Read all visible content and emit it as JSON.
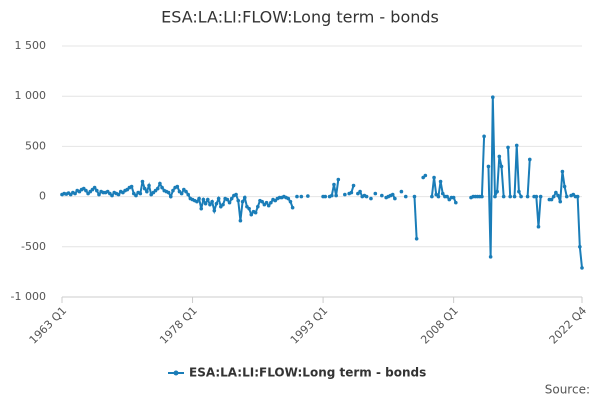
{
  "chart_data": {
    "type": "line",
    "title": "ESA:LA:LI:FLOW:Long term - bonds",
    "source": "Source:",
    "categories": [
      "1963 Q1",
      null,
      null,
      null,
      null,
      null,
      null,
      null,
      null,
      null,
      null,
      null,
      null,
      null,
      null,
      null,
      null,
      null,
      null,
      null,
      null,
      null,
      null,
      null,
      null,
      null,
      null,
      null,
      null,
      null,
      null,
      null,
      null,
      null,
      null,
      null,
      null,
      null,
      null,
      null,
      null,
      null,
      null,
      null,
      null,
      null,
      null,
      null,
      null,
      null,
      null,
      null,
      null,
      null,
      null,
      null,
      null,
      null,
      null,
      null,
      "1978 Q1",
      null,
      null,
      null,
      null,
      null,
      null,
      null,
      null,
      null,
      null,
      null,
      null,
      null,
      null,
      null,
      null,
      null,
      null,
      null,
      null,
      null,
      null,
      null,
      null,
      null,
      null,
      null,
      null,
      null,
      null,
      null,
      null,
      null,
      null,
      null,
      null,
      null,
      null,
      null,
      null,
      null,
      null,
      null,
      null,
      null,
      null,
      null,
      null,
      null,
      null,
      null,
      null,
      null,
      null,
      null,
      null,
      null,
      null,
      null,
      "1993 Q1",
      null,
      null,
      null,
      null,
      null,
      null,
      null,
      null,
      null,
      null,
      null,
      null,
      null,
      null,
      null,
      null,
      null,
      null,
      null,
      null,
      null,
      null,
      null,
      null,
      null,
      null,
      null,
      null,
      null,
      null,
      null,
      null,
      null,
      null,
      null,
      null,
      null,
      null,
      null,
      null,
      null,
      null,
      null,
      null,
      null,
      null,
      null,
      null,
      null,
      null,
      null,
      null,
      null,
      null,
      null,
      null,
      null,
      null,
      null,
      "2008 Q1",
      null,
      null,
      null,
      null,
      null,
      null,
      null,
      null,
      null,
      null,
      null,
      null,
      null,
      null,
      null,
      null,
      null,
      null,
      null,
      null,
      null,
      null,
      null,
      null,
      null,
      null,
      null,
      null,
      null,
      null,
      null,
      null,
      null,
      null,
      null,
      null,
      null,
      null,
      null,
      null,
      null,
      null,
      null,
      null,
      null,
      null,
      null,
      null,
      null,
      null,
      null,
      null,
      null,
      null,
      null,
      null,
      null,
      null,
      "2022 Q4"
    ],
    "series": [
      {
        "name": "ESA:LA:LI:FLOW:Long term - bonds",
        "color": "#1a7db8",
        "values": [
          20,
          30,
          25,
          35,
          20,
          40,
          30,
          60,
          50,
          70,
          80,
          60,
          30,
          50,
          70,
          90,
          60,
          20,
          50,
          40,
          40,
          50,
          30,
          10,
          40,
          30,
          20,
          50,
          40,
          60,
          70,
          90,
          100,
          30,
          10,
          40,
          30,
          150,
          80,
          50,
          110,
          20,
          40,
          60,
          80,
          130,
          90,
          60,
          50,
          40,
          0,
          60,
          90,
          100,
          50,
          30,
          70,
          50,
          20,
          -20,
          -30,
          -40,
          -50,
          -20,
          -120,
          -30,
          -70,
          -30,
          -80,
          -50,
          -140,
          -70,
          -20,
          -100,
          -80,
          -20,
          -30,
          -60,
          -20,
          10,
          20,
          -40,
          -240,
          -50,
          -10,
          -100,
          -120,
          -180,
          -150,
          -160,
          -100,
          -40,
          -50,
          -80,
          -60,
          -90,
          -60,
          -30,
          -40,
          -20,
          -10,
          -10,
          0,
          -10,
          -20,
          -50,
          -110,
          null,
          0,
          null,
          0,
          null,
          null,
          5,
          null,
          null,
          null,
          null,
          null,
          null,
          0,
          0,
          null,
          0,
          10,
          120,
          10,
          170,
          null,
          null,
          20,
          null,
          30,
          40,
          110,
          null,
          30,
          50,
          0,
          10,
          0,
          null,
          -20,
          null,
          30,
          null,
          null,
          10,
          null,
          -10,
          0,
          10,
          20,
          -20,
          null,
          null,
          50,
          null,
          0,
          null,
          null,
          null,
          0,
          -420,
          null,
          null,
          190,
          210,
          null,
          null,
          0,
          190,
          20,
          0,
          150,
          30,
          0,
          0,
          -30,
          -10,
          -10,
          -60,
          null,
          null,
          null,
          null,
          null,
          null,
          -10,
          0,
          0,
          0,
          0,
          0,
          600,
          null,
          300,
          -600,
          990,
          0,
          50,
          400,
          300,
          0,
          null,
          490,
          0,
          null,
          0,
          510,
          50,
          0,
          null,
          null,
          0,
          370,
          null,
          0,
          0,
          -300,
          0,
          null,
          null,
          null,
          -30,
          -30,
          0,
          40,
          10,
          -50,
          250,
          100,
          0,
          null,
          10,
          20,
          0,
          0,
          -500,
          -710
        ]
      }
    ],
    "ylim": [
      -1000,
      1500
    ],
    "yticks": [
      {
        "value": -1000,
        "label": "-1 000"
      },
      -500,
      0,
      500,
      {
        "value": 1000,
        "label": "1 000"
      },
      {
        "value": 1500,
        "label": "1 500"
      }
    ],
    "grid": true,
    "legend": "bottom"
  }
}
